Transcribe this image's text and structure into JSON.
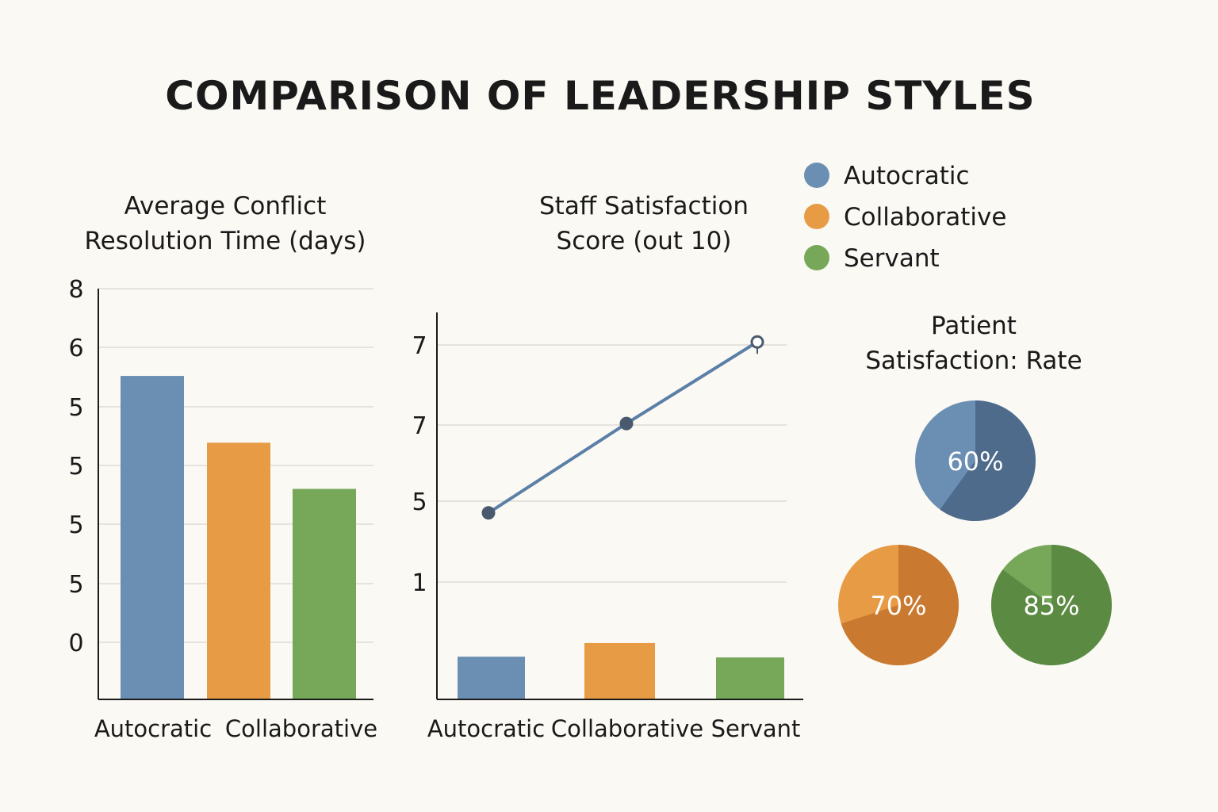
{
  "title": "COMPARISON OF LEADERSHIP STYLES",
  "colors": {
    "autocratic": "#6b8fb3",
    "collaborative": "#e89b45",
    "servant": "#77a85a",
    "line": "#5b7fa6",
    "marker": "#4a5a6e"
  },
  "legend": [
    {
      "label": "Autocratic",
      "color": "#6b8fb3"
    },
    {
      "label": "Collaborative",
      "color": "#e89b45"
    },
    {
      "label": "Servant",
      "color": "#77a85a"
    }
  ],
  "chart_data": [
    {
      "type": "bar",
      "title_lines": [
        "Average Conflict",
        "Resolution Time (days)"
      ],
      "y_tick_labels": [
        "8",
        "6",
        "5",
        "5",
        "5",
        "5",
        "0"
      ],
      "categories": [
        "Autocratic",
        "Collaborative",
        "Servant"
      ],
      "category_labels_shown": [
        "Autocratic",
        "Collaborative"
      ],
      "values": [
        6.3,
        5.0,
        4.1
      ],
      "ylim": [
        0,
        8
      ],
      "colors": [
        "#6b8fb3",
        "#e89b45",
        "#77a85a"
      ],
      "grid": true
    },
    {
      "type": "line+bar",
      "title_lines": [
        "Staff Satisfaction",
        "Score (out 10)"
      ],
      "y_tick_labels": [
        "7",
        "7",
        "5",
        "1"
      ],
      "categories": [
        "Autocratic",
        "Collaborative",
        "Servant"
      ],
      "line_values": [
        4.8,
        7.1,
        9.2
      ],
      "bar_values": [
        1.1,
        1.45,
        1.08
      ],
      "ylim": [
        0,
        10
      ],
      "colors": [
        "#6b8fb3",
        "#e89b45",
        "#77a85a"
      ],
      "grid": true
    },
    {
      "type": "pie",
      "title_lines": [
        "Patient",
        "Satisfaction: Rate"
      ],
      "slices": [
        {
          "category": "Autocratic",
          "value": 60,
          "label": "60%",
          "color": "#6b8fb3",
          "dark": "#4f6b8c"
        },
        {
          "category": "Collaborative",
          "value": 70,
          "label": "70%",
          "color": "#e89b45",
          "dark": "#c97a30"
        },
        {
          "category": "Servant",
          "value": 85,
          "label": "85%",
          "color": "#77a85a",
          "dark": "#5b8a42"
        }
      ]
    }
  ]
}
